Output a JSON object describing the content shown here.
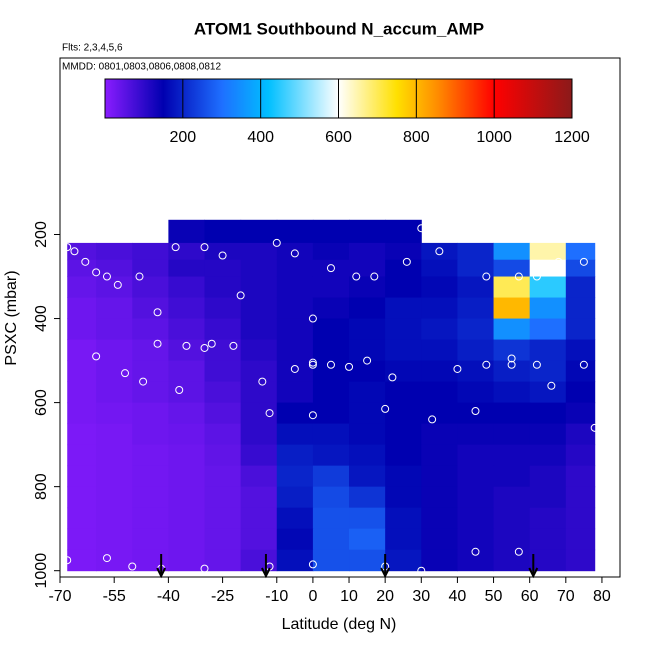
{
  "chart_data": {
    "type": "heatmap",
    "title": "ATOM1 Southbound N_accum_AMP",
    "subtitles": [
      "Flts: 2,3,4,5,6",
      "MMDD: 0801,0803,0806,0808,0812"
    ],
    "xlabel": "Latitude (deg N)",
    "ylabel": "PSXC (mbar)",
    "xlim": [
      -70,
      85
    ],
    "xticks": [
      -70,
      -55,
      -40,
      -25,
      -10,
      0,
      10,
      20,
      30,
      40,
      50,
      60,
      70,
      80
    ],
    "ylim": [
      1015,
      -220
    ],
    "yticks": [
      200,
      400,
      600,
      800,
      1000
    ],
    "x_edges": [
      -68,
      -60,
      -50,
      -40,
      -30,
      -20,
      -10,
      0,
      10,
      20,
      30,
      40,
      50,
      60,
      70,
      78
    ],
    "y_edges": [
      165,
      220,
      260,
      300,
      350,
      400,
      450,
      500,
      550,
      600,
      650,
      700,
      750,
      800,
      850,
      900,
      950,
      1000
    ],
    "values": [
      [
        null,
        null,
        null,
        140,
        150,
        150,
        150,
        150,
        150,
        150,
        null,
        null,
        null,
        null,
        null
      ],
      [
        60,
        70,
        80,
        100,
        120,
        120,
        130,
        140,
        130,
        140,
        180,
        200,
        350,
        650,
        300
      ],
      [
        50,
        60,
        80,
        110,
        110,
        120,
        130,
        130,
        130,
        150,
        170,
        200,
        250,
        600,
        250
      ],
      [
        40,
        50,
        70,
        90,
        110,
        120,
        130,
        130,
        140,
        150,
        160,
        180,
        700,
        450,
        200
      ],
      [
        30,
        40,
        60,
        80,
        100,
        120,
        130,
        140,
        150,
        170,
        170,
        190,
        800,
        350,
        200
      ],
      [
        30,
        40,
        50,
        70,
        90,
        120,
        130,
        150,
        160,
        170,
        180,
        200,
        350,
        300,
        200
      ],
      [
        20,
        30,
        40,
        60,
        80,
        110,
        130,
        150,
        160,
        170,
        170,
        190,
        220,
        200,
        170
      ],
      [
        20,
        30,
        40,
        50,
        80,
        100,
        130,
        150,
        150,
        160,
        160,
        170,
        190,
        200,
        160
      ],
      [
        20,
        30,
        40,
        50,
        70,
        100,
        130,
        150,
        160,
        150,
        150,
        160,
        170,
        180,
        150
      ],
      [
        20,
        25,
        30,
        40,
        60,
        100,
        150,
        150,
        160,
        150,
        150,
        150,
        150,
        150,
        140
      ],
      [
        15,
        20,
        30,
        35,
        50,
        100,
        170,
        170,
        160,
        150,
        140,
        140,
        140,
        140,
        120
      ],
      [
        15,
        20,
        25,
        30,
        45,
        90,
        190,
        180,
        170,
        150,
        140,
        130,
        130,
        130,
        110
      ],
      [
        15,
        20,
        25,
        30,
        40,
        70,
        200,
        230,
        180,
        160,
        140,
        130,
        130,
        120,
        100
      ],
      [
        15,
        20,
        25,
        30,
        40,
        60,
        190,
        250,
        220,
        160,
        140,
        130,
        120,
        120,
        100
      ],
      [
        15,
        20,
        25,
        30,
        40,
        60,
        170,
        260,
        260,
        170,
        140,
        130,
        120,
        110,
        100
      ],
      [
        15,
        20,
        25,
        30,
        40,
        60,
        160,
        260,
        280,
        170,
        140,
        130,
        120,
        110,
        100
      ],
      [
        15,
        20,
        25,
        30,
        40,
        70,
        170,
        260,
        260,
        180,
        140,
        130,
        120,
        110,
        100
      ]
    ],
    "colorscale": [
      {
        "value": 0,
        "color": "#8a1cff"
      },
      {
        "value": 150,
        "color": "#0000b0"
      },
      {
        "value": 300,
        "color": "#1e6fff"
      },
      {
        "value": 420,
        "color": "#00bfff"
      },
      {
        "value": 600,
        "color": "#ffffff"
      },
      {
        "value": 750,
        "color": "#ffe000"
      },
      {
        "value": 850,
        "color": "#ff9000"
      },
      {
        "value": 1000,
        "color": "#ff0000"
      },
      {
        "value": 1200,
        "color": "#8b1a1a"
      }
    ],
    "colorbar_lim": [
      0,
      1200
    ],
    "colorbar_ticks": [
      200,
      400,
      600,
      800,
      1000,
      1200
    ],
    "points": {
      "x": [
        -68,
        -66,
        -63,
        -60,
        -57,
        -54,
        -48,
        -43,
        -38,
        -30,
        -25,
        -20,
        -10,
        -5,
        0,
        0,
        5,
        12,
        17,
        26,
        30,
        35,
        48,
        57,
        62,
        68,
        75,
        -43,
        -35,
        -30,
        -22,
        -14,
        -5,
        0,
        5,
        10,
        15,
        22,
        40,
        48,
        55,
        66,
        75,
        -60,
        -52,
        -47,
        -37,
        -28,
        -12,
        0,
        20,
        33,
        45,
        55,
        62,
        78,
        -68,
        -57,
        -50,
        -42,
        -30,
        -12,
        0,
        20,
        30,
        45,
        57
      ],
      "y": [
        230,
        240,
        265,
        290,
        300,
        320,
        300,
        385,
        230,
        230,
        250,
        345,
        220,
        245,
        400,
        505,
        280,
        300,
        300,
        265,
        185,
        240,
        300,
        300,
        300,
        265,
        265,
        460,
        465,
        470,
        465,
        550,
        520,
        510,
        510,
        515,
        500,
        540,
        520,
        510,
        495,
        560,
        510,
        490,
        530,
        550,
        570,
        460,
        625,
        630,
        615,
        640,
        620,
        510,
        510,
        660,
        975,
        970,
        990,
        995,
        995,
        990,
        985,
        990,
        1000,
        955,
        955
      ]
    },
    "arrows_x": [
      -42,
      -13,
      20,
      61
    ]
  }
}
